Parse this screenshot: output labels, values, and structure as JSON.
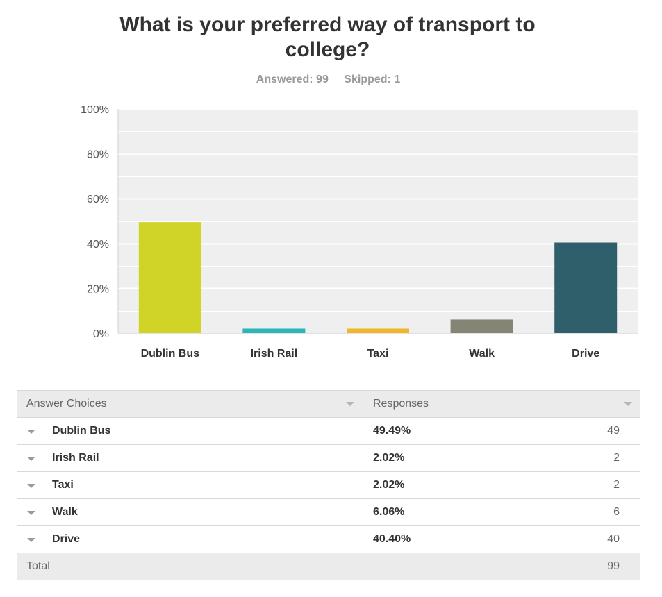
{
  "question": "What is your preferred way of transport to college?",
  "answered": "Answered: 99",
  "skipped": "Skipped: 1",
  "chart_data": {
    "type": "bar",
    "categories": [
      "Dublin Bus",
      "Irish Rail",
      "Taxi",
      "Walk",
      "Drive"
    ],
    "values": [
      49.49,
      2.02,
      2.02,
      6.06,
      40.4
    ],
    "colors": [
      "#cfd427",
      "#2bb6b8",
      "#f2b728",
      "#858575",
      "#2e5f6b"
    ],
    "ylim": [
      0,
      100
    ],
    "yticks": [
      "0%",
      "20%",
      "40%",
      "60%",
      "80%",
      "100%"
    ],
    "grid": true,
    "xlabel": "",
    "ylabel": ""
  },
  "table": {
    "header": {
      "choices": "Answer Choices",
      "responses": "Responses"
    },
    "rows": [
      {
        "choice": "Dublin Bus",
        "percent": "49.49%",
        "count": "49"
      },
      {
        "choice": "Irish Rail",
        "percent": "2.02%",
        "count": "2"
      },
      {
        "choice": "Taxi",
        "percent": "2.02%",
        "count": "2"
      },
      {
        "choice": "Walk",
        "percent": "6.06%",
        "count": "6"
      },
      {
        "choice": "Drive",
        "percent": "40.40%",
        "count": "40"
      }
    ],
    "total_label": "Total",
    "total_value": "99"
  }
}
